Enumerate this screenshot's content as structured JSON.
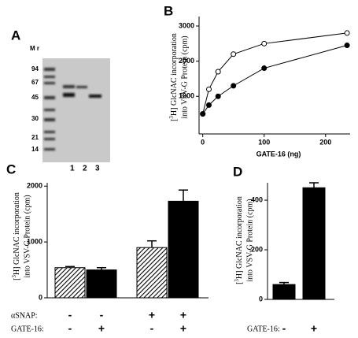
{
  "panel_labels": [
    "A",
    "B",
    "C",
    "D"
  ],
  "gel": {
    "mr_label": "M r",
    "markers": [
      "94",
      "67",
      "45",
      "30",
      "21",
      "14"
    ],
    "lanes": [
      "1",
      "2",
      "3"
    ]
  },
  "chart_data": [
    {
      "type": "line",
      "xlabel": "GATE-16 (ng)",
      "ylabel": {
        "open": "[",
        "sup": "3",
        "rest": "H] GlcNAC incorporation",
        "line2": "into VSV-G Protein (cpm)"
      },
      "x": [
        0,
        10,
        25,
        50,
        100,
        235
      ],
      "series": [
        {
          "name": "open",
          "marker": "open",
          "values": [
            500,
            1200,
            1700,
            2200,
            2500,
            2800
          ]
        },
        {
          "name": "filled",
          "marker": "filled",
          "values": [
            500,
            750,
            1000,
            1300,
            1800,
            2450
          ]
        }
      ],
      "xlim": [
        -6,
        240
      ],
      "ylim": [
        -70,
        3000
      ],
      "xticks": [
        0,
        100,
        200
      ],
      "yticks": [
        1000,
        2000,
        3000
      ]
    },
    {
      "type": "bar",
      "ylabel": {
        "open": "[",
        "sup": "3",
        "rest": "H] GlcNAC incorporation",
        "line2": "into VSV-G Protein (cpm)"
      },
      "values": [
        540,
        500,
        900,
        1730
      ],
      "errors": [
        20,
        40,
        120,
        200
      ],
      "fills": [
        "hatch",
        "black",
        "hatch",
        "black"
      ],
      "conditions": [
        {
          "name": "αSNAP:",
          "signs": [
            "-",
            "-",
            "+",
            "+"
          ]
        },
        {
          "name": "GATE-16:",
          "signs": [
            "-",
            "+",
            "-",
            "+"
          ]
        }
      ],
      "ylim": [
        0,
        2060
      ],
      "yticks": [
        0,
        1000,
        2000
      ]
    },
    {
      "type": "bar",
      "ylabel": {
        "open": "[",
        "sup": "3",
        "rest": "H] GlcNAC incorporation",
        "line2": "into VSV-G Protein (cpm)"
      },
      "values": [
        60,
        450
      ],
      "errors": [
        8,
        20
      ],
      "fills": [
        "black",
        "black"
      ],
      "conditions": [
        {
          "name": "GATE-16:",
          "signs": [
            "-",
            "+"
          ]
        }
      ],
      "ylim": [
        0,
        470
      ],
      "yticks": [
        0,
        200,
        400
      ]
    }
  ]
}
